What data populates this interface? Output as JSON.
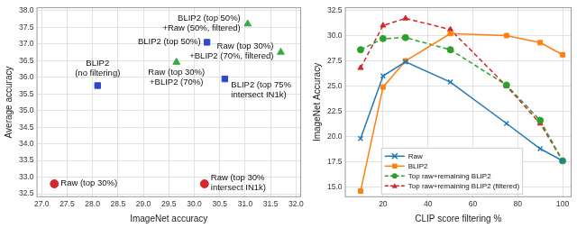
{
  "chart_data": [
    {
      "type": "scatter",
      "x_label": "ImageNet accuracy",
      "y_label": "Average accuracy",
      "xlim": [
        26.9,
        32.1
      ],
      "ylim": [
        32.4,
        38.1
      ],
      "xticks": [
        {
          "value": 27,
          "label": "27.0"
        },
        27.5,
        {
          "value": 28,
          "label": "28.0"
        },
        28.5,
        {
          "value": 29,
          "label": "29.0"
        },
        29.5,
        {
          "value": 30,
          "label": "30.0"
        },
        30.5,
        {
          "value": 31,
          "label": "31.0"
        },
        31.5,
        {
          "value": 32,
          "label": "32.0"
        }
      ],
      "yticks": [
        32.5,
        {
          "value": 33,
          "label": "33.0"
        },
        33.5,
        {
          "value": 34,
          "label": "34.0"
        },
        34.5,
        {
          "value": 35,
          "label": "35.0"
        },
        35.5,
        {
          "value": 36,
          "label": "36.0"
        },
        36.5,
        {
          "value": 37,
          "label": "37.0"
        },
        37.5,
        {
          "value": 38,
          "label": "38.0"
        }
      ],
      "grid": true,
      "points": [
        {
          "label": [
            "Raw (top 30%)"
          ],
          "x": 27.25,
          "y": 32.8,
          "color": "#d62728",
          "marker": "circle"
        },
        {
          "label": [
            "Raw (top 30%",
            "intersect IN1k)"
          ],
          "x": 30.2,
          "y": 32.8,
          "color": "#d62728",
          "marker": "circle"
        },
        {
          "label": [
            "BLIP2",
            "(no filtering)"
          ],
          "x": 28.1,
          "y": 35.75,
          "color": "#3346c8",
          "marker": "square"
        },
        {
          "label": [
            "BLIP2 (top 50%)"
          ],
          "x": 30.25,
          "y": 37.05,
          "color": "#3346c8",
          "marker": "square"
        },
        {
          "label": [
            "BLIP2 (top 75%",
            "intersect IN1k)"
          ],
          "x": 30.6,
          "y": 35.95,
          "color": "#3346c8",
          "marker": "square"
        },
        {
          "label": [
            "Raw (top 30%)",
            "+BLIP2 (70%)"
          ],
          "x": 29.65,
          "y": 36.45,
          "color": "#3aa845",
          "marker": "triangle"
        },
        {
          "label": [
            "BLIP2 (top 50%)",
            "+Raw (50%, filtered)"
          ],
          "x": 31.05,
          "y": 37.6,
          "color": "#3aa845",
          "marker": "triangle"
        },
        {
          "label": [
            "Raw (top 30%)",
            "+BLIP2 (70%, filtered)"
          ],
          "x": 31.7,
          "y": 36.75,
          "color": "#3aa845",
          "marker": "triangle"
        }
      ]
    },
    {
      "type": "line",
      "x_label": "CLIP score filtering %",
      "y_label": "ImageNet Accuracy",
      "xlim": [
        3,
        104
      ],
      "ylim": [
        14.0,
        32.8
      ],
      "xticks": [
        20,
        40,
        60,
        80,
        100
      ],
      "yticks": [
        {
          "value": 15,
          "label": "15.0"
        },
        17.5,
        {
          "value": 20,
          "label": "20.0"
        },
        22.5,
        {
          "value": 25,
          "label": "25.0"
        },
        27.5,
        {
          "value": 30,
          "label": "30.0"
        },
        32.5
      ],
      "grid": true,
      "legend": "lower left",
      "x": [
        10,
        20,
        30,
        50,
        75,
        90,
        100
      ],
      "series": [
        {
          "name": "Raw",
          "color": "#1f77b4",
          "marker": "x",
          "line_style": "solid",
          "values": [
            19.8,
            26.0,
            27.4,
            25.4,
            21.3,
            18.8,
            17.6
          ]
        },
        {
          "name": "BLIP2",
          "color": "#ff7f0e",
          "marker": "square",
          "line_style": "solid",
          "values": [
            14.6,
            24.9,
            27.5,
            30.2,
            30.0,
            29.3,
            28.1
          ]
        },
        {
          "name": "Top raw+remaining BLIP2",
          "color": "#2ca02c",
          "marker": "circle",
          "line_style": "dashed",
          "values": [
            28.6,
            29.7,
            29.8,
            28.6,
            25.1,
            21.6,
            17.6
          ]
        },
        {
          "name": "Top raw+remaining BLIP2 (filtered)",
          "color": "#d62728",
          "marker": "triangle",
          "line_style": "dashed",
          "values": [
            26.8,
            31.0,
            31.7,
            30.6,
            25.0,
            21.3,
            17.6
          ]
        }
      ]
    }
  ]
}
